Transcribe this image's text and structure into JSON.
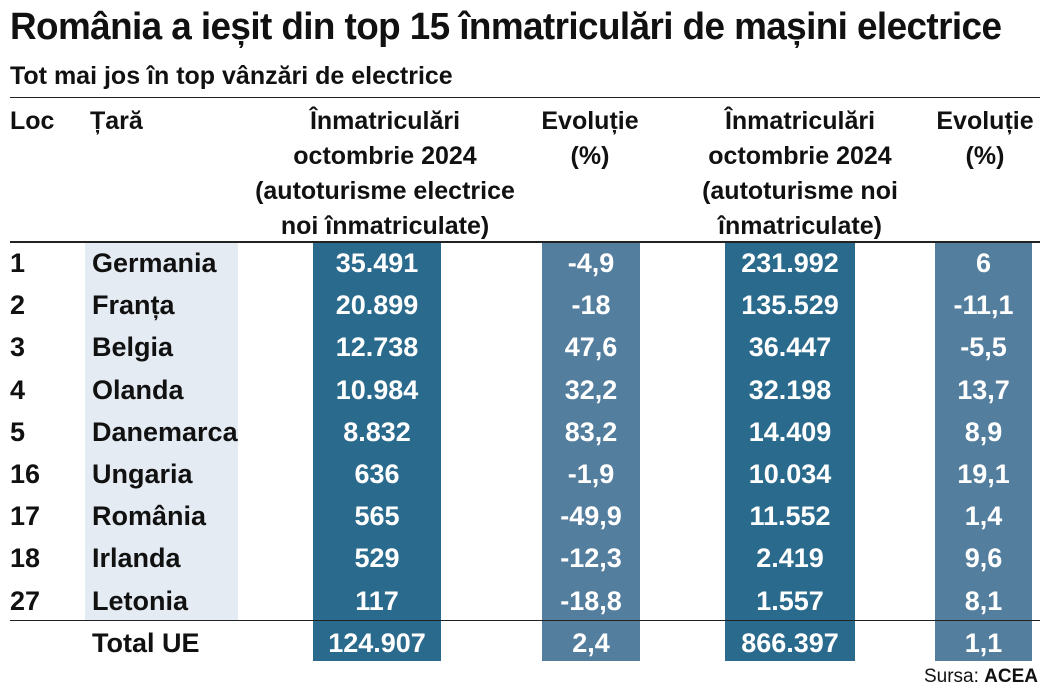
{
  "title": "România a ieșit din top 15 înmatriculări de mașini electrice",
  "subtitle": "Tot mai jos în top vânzări de electrice",
  "headers": {
    "rank": "Loc",
    "country": "Țară",
    "ev_regs": "Înmatriculări\noctombrie 2024\n(autoturisme electrice\nnoi înmatriculate)",
    "ev_change": "Evoluție\n(%)",
    "all_regs": "Înmatriculări\noctombrie 2024\n(autoturisme noi\nînmatriculate)",
    "all_change": "Evoluție\n(%)"
  },
  "rows": [
    {
      "rank": "1",
      "country": "Germania",
      "ev": "35.491",
      "ev_change": "-4,9",
      "all": "231.992",
      "all_change": "6"
    },
    {
      "rank": "2",
      "country": "Franța",
      "ev": "20.899",
      "ev_change": "-18",
      "all": "135.529",
      "all_change": "-11,1"
    },
    {
      "rank": "3",
      "country": "Belgia",
      "ev": "12.738",
      "ev_change": "47,6",
      "all": "36.447",
      "all_change": "-5,5"
    },
    {
      "rank": "4",
      "country": "Olanda",
      "ev": "10.984",
      "ev_change": "32,2",
      "all": "32.198",
      "all_change": "13,7"
    },
    {
      "rank": "5",
      "country": "Danemarca",
      "ev": "8.832",
      "ev_change": "83,2",
      "all": "14.409",
      "all_change": "8,9"
    },
    {
      "rank": "16",
      "country": "Ungaria",
      "ev": "636",
      "ev_change": "-1,9",
      "all": "10.034",
      "all_change": "19,1"
    },
    {
      "rank": "17",
      "country": "România",
      "ev": "565",
      "ev_change": "-49,9",
      "all": "11.552",
      "all_change": "1,4"
    },
    {
      "rank": "18",
      "country": "Irlanda",
      "ev": "529",
      "ev_change": "-12,3",
      "all": "2.419",
      "all_change": "9,6"
    },
    {
      "rank": "27",
      "country": "Letonia",
      "ev": "117",
      "ev_change": "-18,8",
      "all": "1.557",
      "all_change": "8,1"
    },
    {
      "rank": "",
      "country": "Total UE",
      "ev": "124.907",
      "ev_change": "2,4",
      "all": "866.397",
      "all_change": "1,1"
    }
  ],
  "source_label": "Sursa:",
  "source_name": "ACEA",
  "colors": {
    "country_band": "#e4ebf2",
    "ev_band": "#2a6a8d",
    "change_band": "#547e9e"
  },
  "chart_data": {
    "type": "table",
    "title": "România a ieșit din top 15 înmatriculări de mașini electrice",
    "subtitle": "Tot mai jos în top vânzări de electrice",
    "columns": [
      "Loc",
      "Țară",
      "Înmatriculări octombrie 2024 (autoturisme electrice noi înmatriculate)",
      "Evoluție (%)",
      "Înmatriculări octombrie 2024 (autoturisme noi înmatriculate)",
      "Evoluție (%)"
    ],
    "rows": [
      [
        "1",
        "Germania",
        35491,
        -4.9,
        231992,
        6
      ],
      [
        "2",
        "Franța",
        20899,
        -18,
        135529,
        -11.1
      ],
      [
        "3",
        "Belgia",
        12738,
        47.6,
        36447,
        -5.5
      ],
      [
        "4",
        "Olanda",
        10984,
        32.2,
        32198,
        13.7
      ],
      [
        "5",
        "Danemarca",
        8832,
        83.2,
        14409,
        8.9
      ],
      [
        "16",
        "Ungaria",
        636,
        -1.9,
        10034,
        19.1
      ],
      [
        "17",
        "România",
        565,
        -49.9,
        11552,
        1.4
      ],
      [
        "18",
        "Irlanda",
        529,
        -12.3,
        2419,
        9.6
      ],
      [
        "27",
        "Letonia",
        117,
        -18.8,
        1557,
        8.1
      ],
      [
        "",
        "Total UE",
        124907,
        2.4,
        866397,
        1.1
      ]
    ]
  }
}
